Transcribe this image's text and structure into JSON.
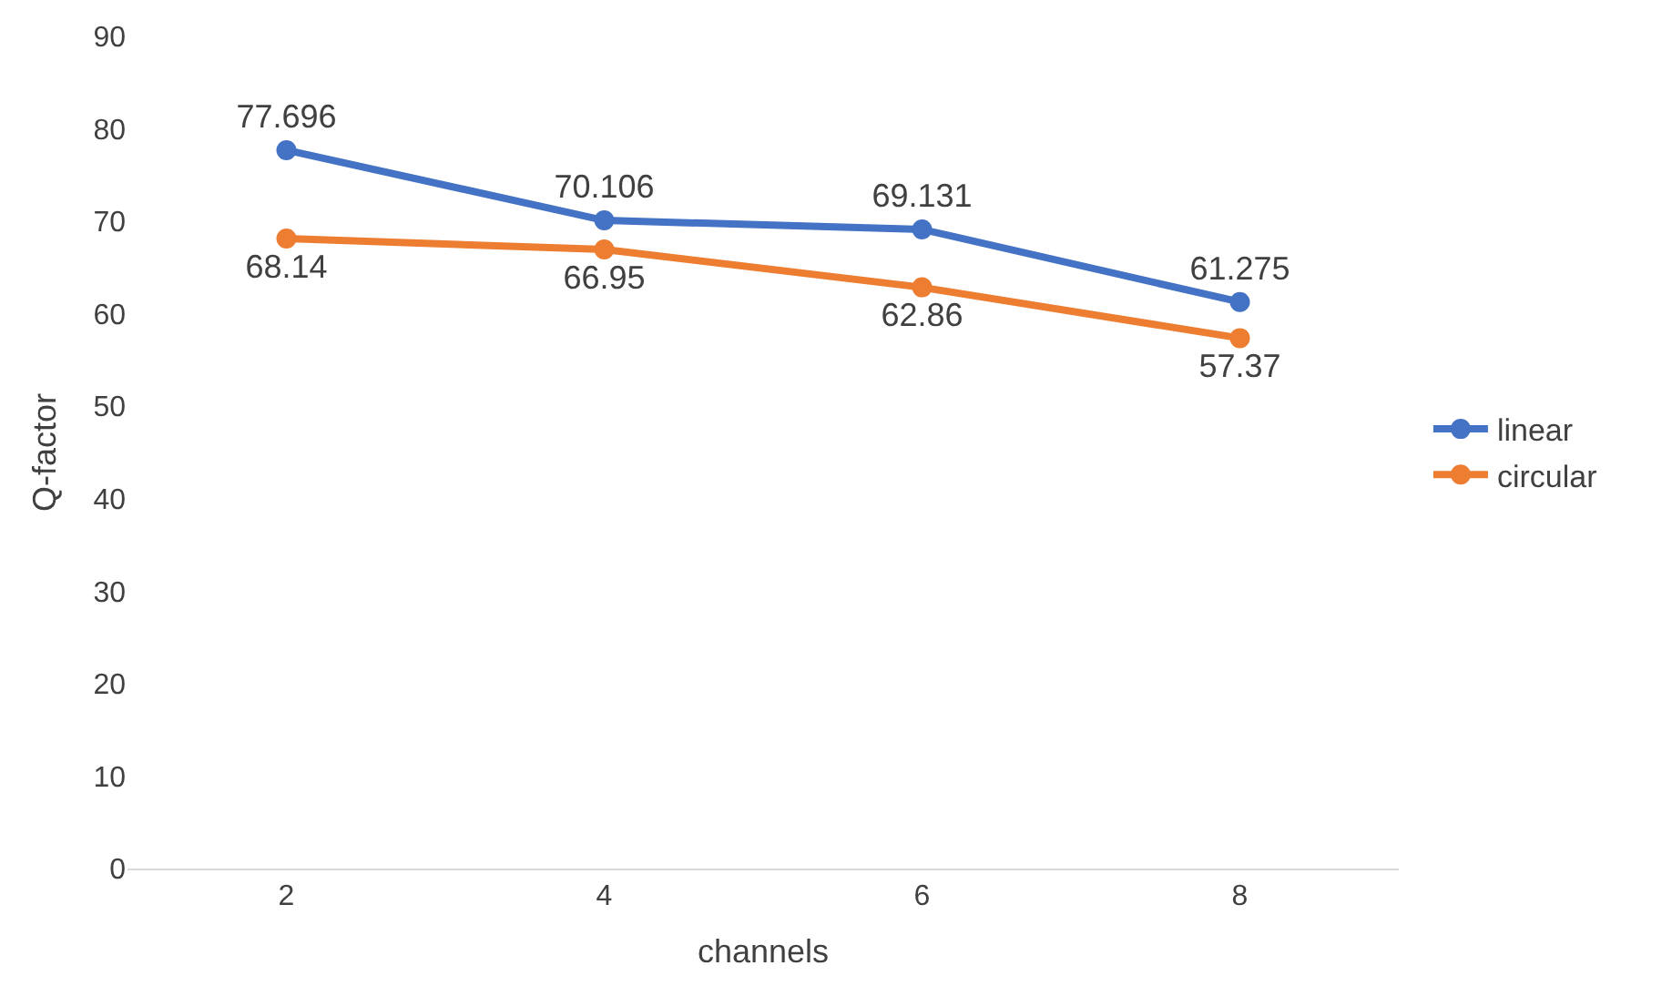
{
  "chart_data": {
    "type": "line",
    "xlabel": "channels",
    "ylabel": "Q-factor",
    "categories": [
      "2",
      "4",
      "6",
      "8"
    ],
    "series": [
      {
        "name": "linear",
        "color": "#4472c4",
        "values": [
          77.696,
          70.106,
          69.131,
          61.275
        ]
      },
      {
        "name": "circular",
        "color": "#ed7d31",
        "values": [
          68.14,
          66.95,
          62.86,
          57.37
        ]
      }
    ],
    "ylim": [
      0,
      90
    ],
    "yticks": [
      0,
      10,
      20,
      30,
      40,
      50,
      60,
      70,
      80,
      90
    ],
    "grid": false,
    "legend": "right",
    "marker": "circle",
    "line_style": "solid",
    "data_labels": true
  }
}
